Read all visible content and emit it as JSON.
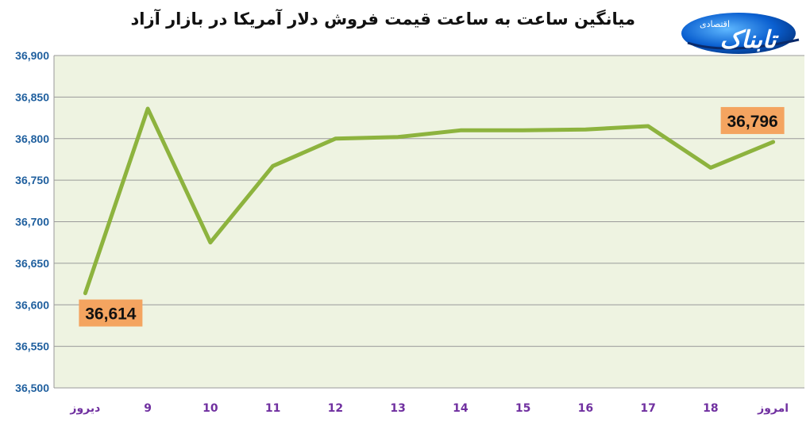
{
  "chart_data": {
    "type": "line",
    "title": "میانگین ساعت به ساعت قیمت فروش دلار آمریکا در بازار آزاد",
    "categories": [
      "دیروز",
      "9",
      "10",
      "11",
      "12",
      "13",
      "14",
      "15",
      "16",
      "17",
      "18",
      "امروز"
    ],
    "series": [
      {
        "values": [
          36614,
          36836,
          36675,
          36767,
          36800,
          36802,
          36810,
          36810,
          36811,
          36815,
          36765,
          36796
        ]
      }
    ],
    "ylim": [
      36500,
      36900
    ],
    "yticks": [
      "36,500",
      "36,550",
      "36,600",
      "36,650",
      "36,700",
      "36,750",
      "36,800",
      "36,850",
      "36,900"
    ],
    "data_labels": [
      {
        "index": 0,
        "text": "36,614"
      },
      {
        "index": 11,
        "text": "36,796"
      }
    ],
    "grid": true,
    "legend": "none",
    "colors": {
      "line": "#8db33e",
      "plot_bg": "#eef3e1",
      "label_bg": "#f4a460",
      "grid": "#9a9a9a",
      "ytick": "#1f5f9e",
      "xtick": "#7030a0"
    }
  },
  "logo": {
    "text": "تابناک",
    "subtext": "اقتصادی"
  }
}
